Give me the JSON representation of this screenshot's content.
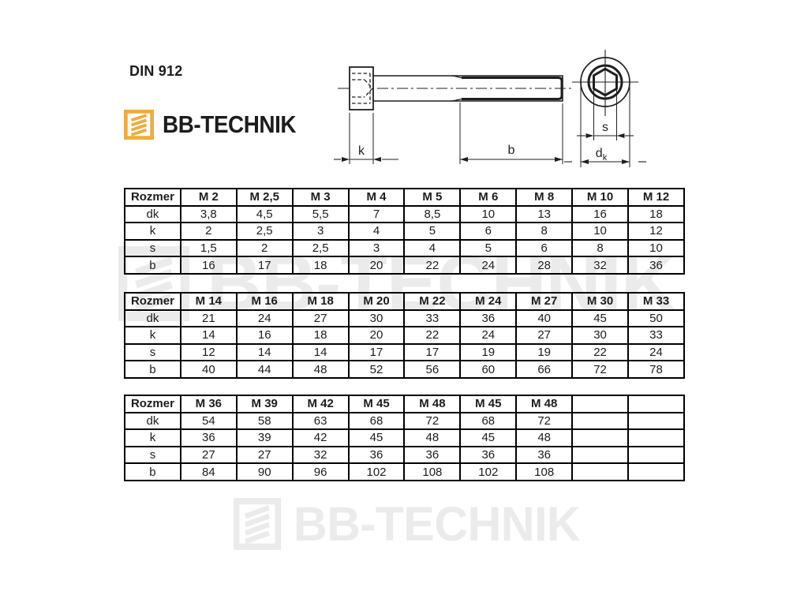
{
  "header": {
    "din_label": "DIN 912",
    "brand": "BB-TECHNIK"
  },
  "drawing": {
    "dim_k": "k",
    "dim_b": "b",
    "dim_s": "s",
    "dim_d": "d",
    "dim_d_sub": "k"
  },
  "watermarks": {
    "middle_brand": "BB-TECHNIK",
    "bottom_brand": "BB-TECHNIK"
  },
  "tables": [
    {
      "header": [
        "Rozmer",
        "M 2",
        "M 2,5",
        "M 3",
        "M 4",
        "M 5",
        "M 6",
        "M 8",
        "M 10",
        "M 12"
      ],
      "rows": [
        [
          "dk",
          "3,8",
          "4,5",
          "5,5",
          "7",
          "8,5",
          "10",
          "13",
          "16",
          "18"
        ],
        [
          "k",
          "2",
          "2,5",
          "3",
          "4",
          "5",
          "6",
          "8",
          "10",
          "12"
        ],
        [
          "s",
          "1,5",
          "2",
          "2,5",
          "3",
          "4",
          "5",
          "6",
          "8",
          "10"
        ],
        [
          "b",
          "16",
          "17",
          "18",
          "20",
          "22",
          "24",
          "28",
          "32",
          "36"
        ]
      ]
    },
    {
      "header": [
        "Rozmer",
        "M 14",
        "M 16",
        "M 18",
        "M 20",
        "M 22",
        "M 24",
        "M 27",
        "M 30",
        "M 33"
      ],
      "rows": [
        [
          "dk",
          "21",
          "24",
          "27",
          "30",
          "33",
          "36",
          "40",
          "45",
          "50"
        ],
        [
          "k",
          "14",
          "16",
          "18",
          "20",
          "22",
          "24",
          "27",
          "30",
          "33"
        ],
        [
          "s",
          "12",
          "14",
          "14",
          "17",
          "17",
          "19",
          "19",
          "22",
          "24"
        ],
        [
          "b",
          "40",
          "44",
          "48",
          "52",
          "56",
          "60",
          "66",
          "72",
          "78"
        ]
      ]
    },
    {
      "header": [
        "Rozmer",
        "M 36",
        "M 39",
        "M 42",
        "M 45",
        "M 48",
        "M 45",
        "M 48",
        "",
        ""
      ],
      "rows": [
        [
          "dk",
          "54",
          "58",
          "63",
          "68",
          "72",
          "68",
          "72",
          "",
          ""
        ],
        [
          "k",
          "36",
          "39",
          "42",
          "45",
          "48",
          "45",
          "48",
          "",
          ""
        ],
        [
          "s",
          "27",
          "27",
          "32",
          "36",
          "36",
          "36",
          "36",
          "",
          ""
        ],
        [
          "b",
          "84",
          "90",
          "96",
          "102",
          "108",
          "102",
          "108",
          "",
          ""
        ]
      ]
    }
  ],
  "colors": {
    "logo_gold": "#EFAC3C",
    "ink": "#1c1c1c",
    "watermark_gray": "#ebebeb",
    "table_border": "#000000"
  }
}
